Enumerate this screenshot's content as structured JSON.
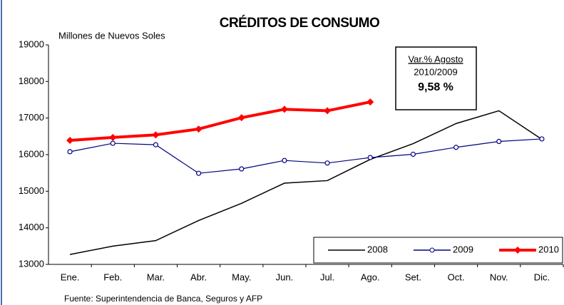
{
  "chart_data": {
    "type": "line",
    "title": "CRÉDITOS DE CONSUMO",
    "subtitle": "Millones de Nuevos Soles",
    "source": "Fuente: Superintendencia de Banca, Seguros y AFP",
    "annotation": [
      "Var.% Agosto",
      "2010/2009",
      "9,58 %"
    ],
    "categories": [
      "Ene.",
      "Feb.",
      "Mar.",
      "Abr.",
      "May.",
      "Jun.",
      "Jul.",
      "Ago.",
      "Set.",
      "Oct.",
      "Nov.",
      "Dic."
    ],
    "series": [
      {
        "name": "2008",
        "color": "#000000",
        "marker": "none",
        "values": [
          13270,
          13500,
          13650,
          14200,
          14670,
          15220,
          15290,
          15870,
          16300,
          16850,
          17200,
          16420
        ]
      },
      {
        "name": "2009",
        "color": "#000080",
        "marker": "circle",
        "values": [
          16080,
          16310,
          16270,
          15490,
          15610,
          15840,
          15770,
          15920,
          16010,
          16200,
          16360,
          16430
        ]
      },
      {
        "name": "2010",
        "color": "#ff0000",
        "marker": "diamond",
        "values": [
          16390,
          16470,
          16540,
          16700,
          17010,
          17240,
          17200,
          17440,
          null,
          null,
          null,
          null
        ]
      }
    ],
    "ylim": [
      13000,
      19000
    ],
    "yticks": [
      13000,
      14000,
      15000,
      16000,
      17000,
      18000,
      19000
    ],
    "grid": false
  }
}
